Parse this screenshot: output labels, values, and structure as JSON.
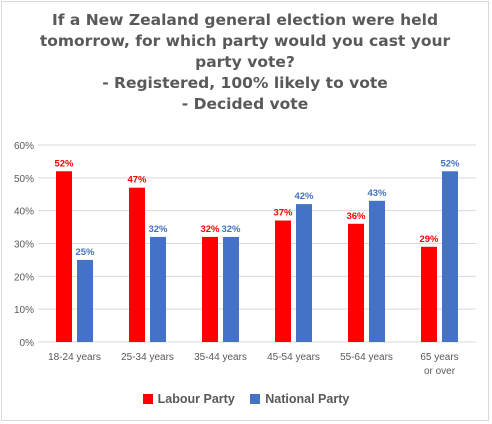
{
  "chart_data": {
    "type": "bar",
    "title_lines": [
      "If a New Zealand general election were held",
      "tomorrow, for which party would you cast your",
      "party vote?",
      "- Registered, 100% likely to vote",
      "- Decided vote"
    ],
    "categories": [
      "18-24 years",
      "25-34 years",
      "35-44 years",
      "45-54 years",
      "55-64 years",
      "65 years or over"
    ],
    "series": [
      {
        "name": "Labour Party",
        "color": "#ff0000",
        "values": [
          52,
          47,
          32,
          37,
          36,
          29
        ],
        "labels": [
          "52%",
          "47%",
          "32%",
          "37%",
          "36%",
          "29%"
        ]
      },
      {
        "name": "National Party",
        "color": "#4472c4",
        "values": [
          25,
          32,
          32,
          42,
          43,
          52
        ],
        "labels": [
          "25%",
          "32%",
          "32%",
          "42%",
          "43%",
          "52%"
        ]
      }
    ],
    "yticks": [
      "0%",
      "10%",
      "20%",
      "30%",
      "40%",
      "50%",
      "60%"
    ],
    "ylim": [
      0,
      60
    ],
    "grid": true,
    "legend_position": "bottom"
  }
}
